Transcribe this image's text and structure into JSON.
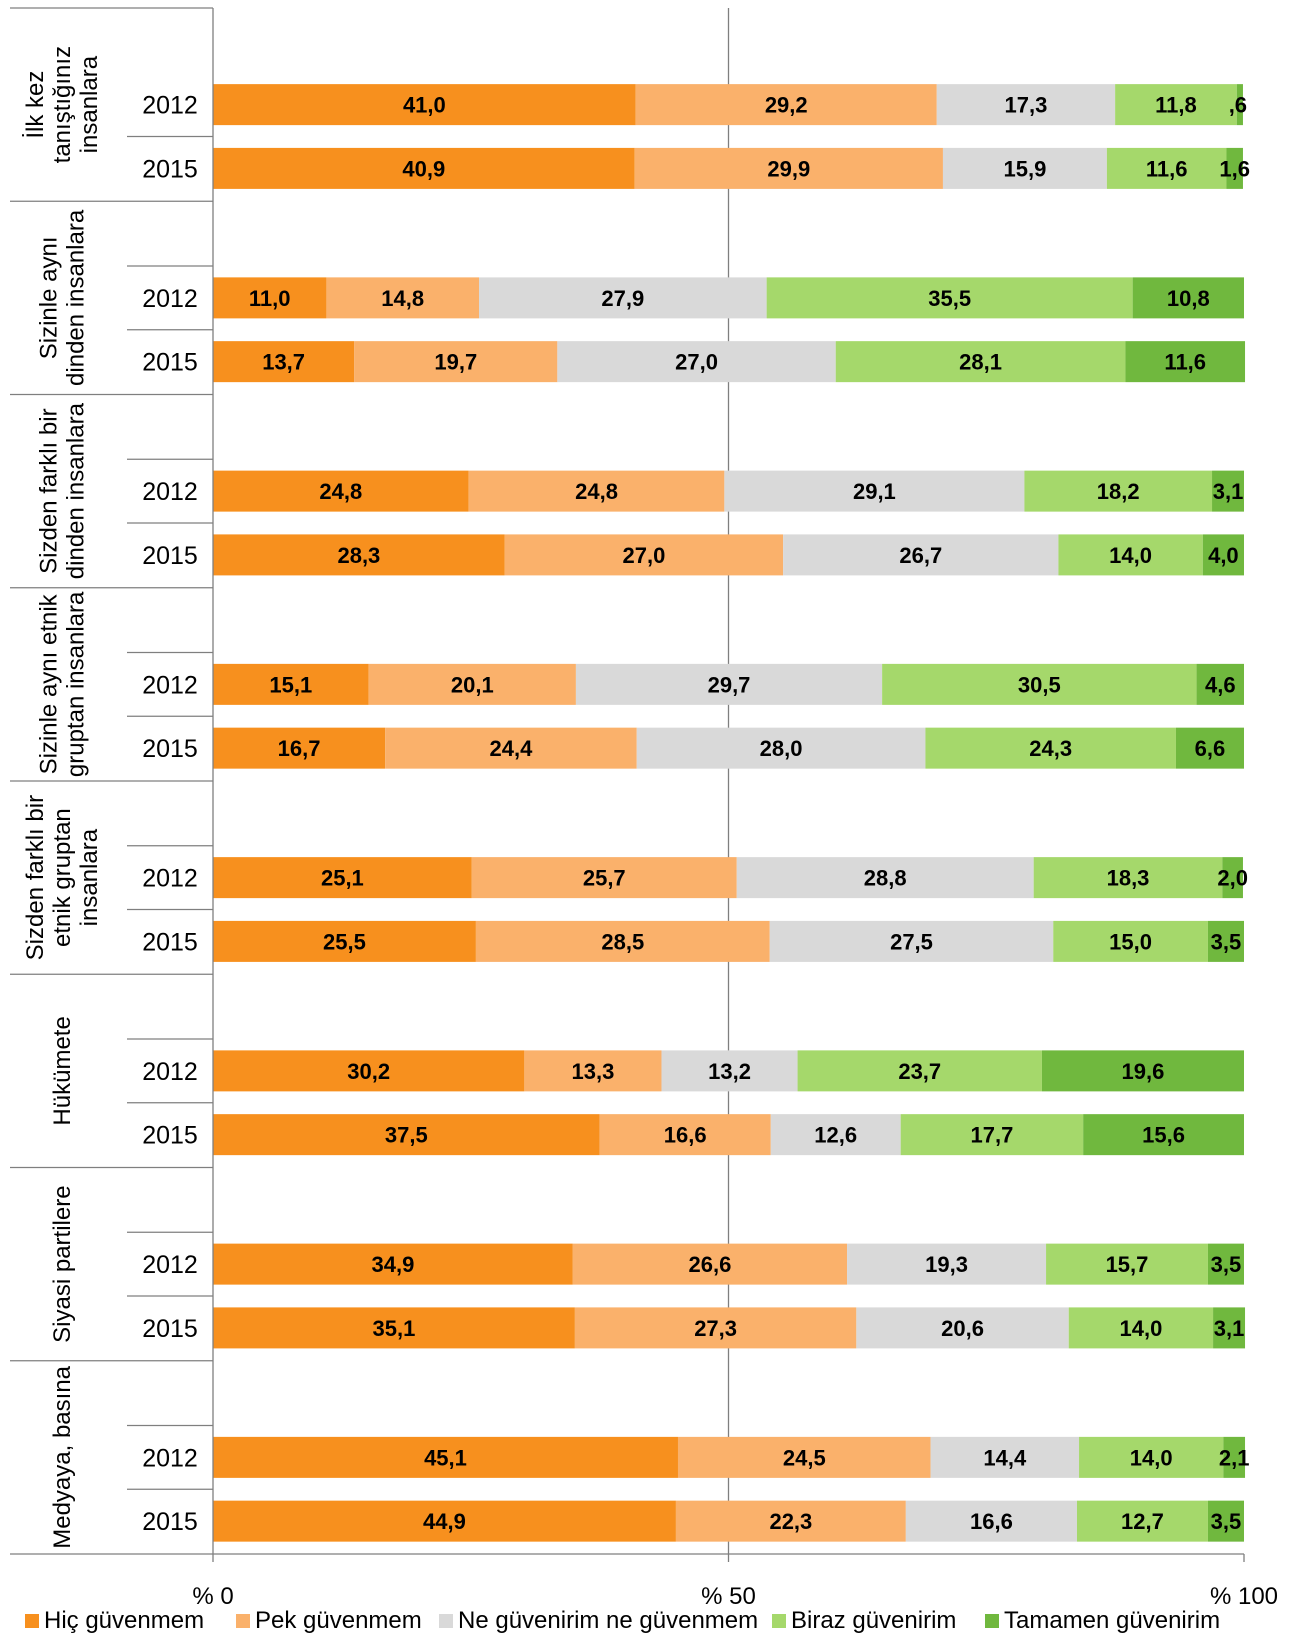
{
  "chart_data": {
    "type": "bar",
    "orientation": "horizontal",
    "stacked": "percent",
    "title": "",
    "xlabel": "",
    "ylabel": "",
    "xlim": [
      0,
      100
    ],
    "x_ticks": [
      {
        "value": 0,
        "label": "% 0"
      },
      {
        "value": 50,
        "label": "% 50"
      },
      {
        "value": 100,
        "label": "% 100"
      }
    ],
    "grid": "vertical line at 50",
    "legend_position": "bottom",
    "series": [
      {
        "name": "Hiç güvenmem",
        "color": "#f7901e"
      },
      {
        "name": "Pek güvenmem",
        "color": "#fab16b"
      },
      {
        "name": "Ne güvenirim ne güvenmem",
        "color": "#d9d9d9"
      },
      {
        "name": "Biraz güvenirim",
        "color": "#a5d86b"
      },
      {
        "name": "Tamamen güvenirim",
        "color": "#70b83e"
      }
    ],
    "groups": [
      {
        "label": [
          "İlk kez",
          "tanıştığınız",
          "insanlara"
        ],
        "bars": [
          {
            "year": "2012",
            "values": [
              41.0,
              29.2,
              17.3,
              11.8,
              0.6
            ],
            "labels": [
              "41,0",
              "29,2",
              "17,3",
              "11,8",
              ",6"
            ]
          },
          {
            "year": "2015",
            "values": [
              40.9,
              29.9,
              15.9,
              11.6,
              1.6
            ],
            "labels": [
              "40,9",
              "29,9",
              "15,9",
              "11,6",
              "1,6"
            ]
          }
        ]
      },
      {
        "label": [
          "Sizinle aynı",
          "dinden insanlara"
        ],
        "bars": [
          {
            "year": "2012",
            "values": [
              11.0,
              14.8,
              27.9,
              35.5,
              10.8
            ],
            "labels": [
              "11,0",
              "14,8",
              "27,9",
              "35,5",
              "10,8"
            ]
          },
          {
            "year": "2015",
            "values": [
              13.7,
              19.7,
              27.0,
              28.1,
              11.6
            ],
            "labels": [
              "13,7",
              "19,7",
              "27,0",
              "28,1",
              "11,6"
            ]
          }
        ]
      },
      {
        "label": [
          "Sizden farklı bir",
          "dinden insanlara"
        ],
        "bars": [
          {
            "year": "2012",
            "values": [
              24.8,
              24.8,
              29.1,
              18.2,
              3.1
            ],
            "labels": [
              "24,8",
              "24,8",
              "29,1",
              "18,2",
              "3,1"
            ]
          },
          {
            "year": "2015",
            "values": [
              28.3,
              27.0,
              26.7,
              14.0,
              4.0
            ],
            "labels": [
              "28,3",
              "27,0",
              "26,7",
              "14,0",
              "4,0"
            ]
          }
        ]
      },
      {
        "label": [
          "Sizinle aynı etnik",
          "gruptan insanlara"
        ],
        "bars": [
          {
            "year": "2012",
            "values": [
              15.1,
              20.1,
              29.7,
              30.5,
              4.6
            ],
            "labels": [
              "15,1",
              "20,1",
              "29,7",
              "30,5",
              "4,6"
            ]
          },
          {
            "year": "2015",
            "values": [
              16.7,
              24.4,
              28.0,
              24.3,
              6.6
            ],
            "labels": [
              "16,7",
              "24,4",
              "28,0",
              "24,3",
              "6,6"
            ]
          }
        ]
      },
      {
        "label": [
          "Sizden farklı bir",
          "etnik gruptan",
          "insanlara"
        ],
        "bars": [
          {
            "year": "2012",
            "values": [
              25.1,
              25.7,
              28.8,
              18.3,
              2.0
            ],
            "labels": [
              "25,1",
              "25,7",
              "28,8",
              "18,3",
              "2,0"
            ]
          },
          {
            "year": "2015",
            "values": [
              25.5,
              28.5,
              27.5,
              15.0,
              3.5
            ],
            "labels": [
              "25,5",
              "28,5",
              "27,5",
              "15,0",
              "3,5"
            ]
          }
        ]
      },
      {
        "label": [
          "Hükümete"
        ],
        "bars": [
          {
            "year": "2012",
            "values": [
              30.2,
              13.3,
              13.2,
              23.7,
              19.6
            ],
            "labels": [
              "30,2",
              "13,3",
              "13,2",
              "23,7",
              "19,6"
            ]
          },
          {
            "year": "2015",
            "values": [
              37.5,
              16.6,
              12.6,
              17.7,
              15.6
            ],
            "labels": [
              "37,5",
              "16,6",
              "12,6",
              "17,7",
              "15,6"
            ]
          }
        ]
      },
      {
        "label": [
          "Siyasi partilere"
        ],
        "bars": [
          {
            "year": "2012",
            "values": [
              34.9,
              26.6,
              19.3,
              15.7,
              3.5
            ],
            "labels": [
              "34,9",
              "26,6",
              "19,3",
              "15,7",
              "3,5"
            ]
          },
          {
            "year": "2015",
            "values": [
              35.1,
              27.3,
              20.6,
              14.0,
              3.1
            ],
            "labels": [
              "35,1",
              "27,3",
              "20,6",
              "14,0",
              "3,1"
            ]
          }
        ]
      },
      {
        "label": [
          "Medyaya, basına"
        ],
        "bars": [
          {
            "year": "2012",
            "values": [
              45.1,
              24.5,
              14.4,
              14.0,
              2.1
            ],
            "labels": [
              "45,1",
              "24,5",
              "14,4",
              "14,0",
              "2,1"
            ]
          },
          {
            "year": "2015",
            "values": [
              44.9,
              22.3,
              16.6,
              12.7,
              3.5
            ],
            "labels": [
              "44,9",
              "22,3",
              "16,6",
              "12,7",
              "3,5"
            ]
          }
        ]
      }
    ]
  }
}
